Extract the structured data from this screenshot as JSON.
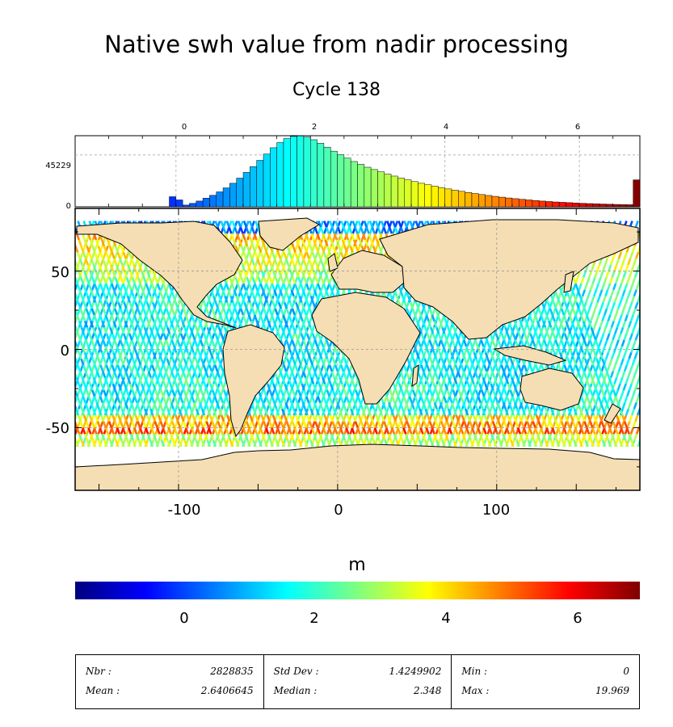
{
  "chart_data": [
    {
      "type": "bar",
      "title": "Native swh value from nadir processing",
      "subtitle": "Cycle 138",
      "panel": "histogram",
      "x_ticks": [
        "0",
        "2",
        "4",
        "6"
      ],
      "y_ticks": [
        "0",
        "45229"
      ],
      "xlim": [
        -1.5,
        6.9
      ],
      "ylim": [
        0,
        62000
      ],
      "bin_width": 0.1,
      "x": [
        -0.1,
        0.0,
        0.1,
        0.2,
        0.3,
        0.4,
        0.5,
        0.6,
        0.7,
        0.8,
        0.9,
        1.0,
        1.1,
        1.2,
        1.3,
        1.4,
        1.5,
        1.6,
        1.7,
        1.8,
        1.9,
        2.0,
        2.1,
        2.2,
        2.3,
        2.4,
        2.5,
        2.6,
        2.7,
        2.8,
        2.9,
        3.0,
        3.1,
        3.2,
        3.3,
        3.4,
        3.5,
        3.6,
        3.7,
        3.8,
        3.9,
        4.0,
        4.1,
        4.2,
        4.3,
        4.4,
        4.5,
        4.6,
        4.7,
        4.8,
        4.9,
        5.0,
        5.1,
        5.2,
        5.3,
        5.4,
        5.5,
        5.6,
        5.7,
        5.8,
        5.9,
        6.0,
        6.1,
        6.2,
        6.3,
        6.4,
        6.5,
        6.6,
        6.7,
        6.8
      ],
      "values": [
        8800,
        6000,
        1500,
        3000,
        5000,
        7500,
        10000,
        13000,
        16500,
        20500,
        25000,
        30000,
        35000,
        40500,
        46000,
        51500,
        56000,
        59500,
        61500,
        61800,
        60800,
        58500,
        55500,
        52000,
        48500,
        45500,
        42500,
        39500,
        37000,
        34500,
        32500,
        30500,
        28500,
        26800,
        25000,
        23500,
        22000,
        20500,
        19200,
        18000,
        16800,
        15600,
        14500,
        13500,
        12500,
        11600,
        10700,
        9900,
        9100,
        8400,
        7700,
        7100,
        6500,
        6000,
        5500,
        5000,
        4600,
        4200,
        3900,
        3600,
        3300,
        3000,
        2800,
        2600,
        2400,
        2200,
        2050,
        1900,
        1800,
        23500
      ],
      "colorscale": "jet"
    },
    {
      "type": "heatmap",
      "panel": "map",
      "xlim": [
        -165,
        190
      ],
      "ylim": [
        -90,
        90
      ],
      "x_ticks": [
        "-100",
        "0",
        "100"
      ],
      "y_ticks": [
        "-50",
        "0",
        "50"
      ],
      "value_range": [
        -1.5,
        6.9
      ],
      "colorbar": {
        "label": "m",
        "ticks": [
          "0",
          "2",
          "4",
          "6"
        ]
      }
    }
  ],
  "stats": {
    "nbr_label": "Nbr :",
    "nbr_value": "2828835",
    "mean_label": "Mean :",
    "mean_value": "2.6406645",
    "std_label": "Std Dev :",
    "std_value": "1.4249902",
    "median_label": "Median :",
    "median_value": "2.348",
    "min_label": "Min :",
    "min_value": "0",
    "max_label": "Max :",
    "max_value": "19.969"
  },
  "colors": {
    "land": "#f5deb3",
    "antarctica_gap": "#ffffff"
  }
}
